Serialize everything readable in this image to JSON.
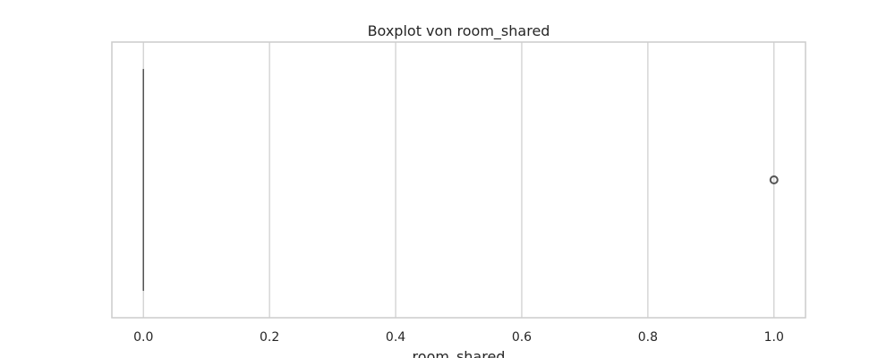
{
  "chart_data": {
    "type": "boxplot",
    "title": "Boxplot von room_shared",
    "xlabel": "room_shared",
    "ylabel": "",
    "xlim": [
      -0.05,
      1.05
    ],
    "xticks": [
      0.0,
      0.2,
      0.4,
      0.6,
      0.8,
      1.0
    ],
    "xtick_labels": [
      "0.0",
      "0.2",
      "0.4",
      "0.6",
      "0.8",
      "1.0"
    ],
    "grid": true,
    "box": {
      "q1": 0.0,
      "median": 0.0,
      "q3": 0.0,
      "whisker_low": 0.0,
      "whisker_high": 0.0
    },
    "outliers": [
      1.0
    ],
    "colors": {
      "grid": "#cccccc",
      "spine": "#cccccc",
      "box_line": "#555555",
      "text": "#262626"
    }
  }
}
